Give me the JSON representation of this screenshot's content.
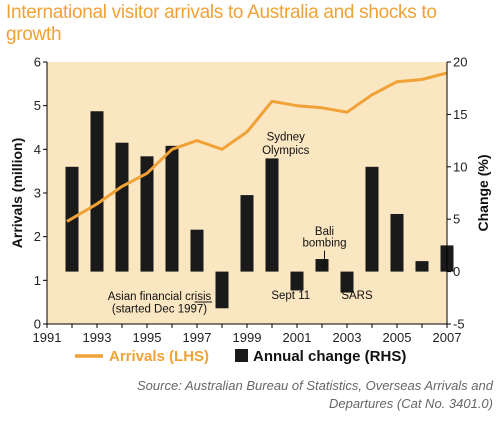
{
  "chart_data": {
    "type": "bar+line",
    "title": "International visitor arrivals to Australia and shocks to growth",
    "ylabel_left": "Arrivals (million)",
    "ylabel_right": "Change (%)",
    "ylim_left": [
      0,
      6
    ],
    "ylim_right": [
      -5,
      20
    ],
    "left_ticks": [
      "0",
      "1",
      "2",
      "3",
      "4",
      "5",
      "6"
    ],
    "right_ticks": [
      "-5",
      "0",
      "5",
      "10",
      "15",
      "20"
    ],
    "x_ticks": [
      "1991",
      "1993",
      "1995",
      "1997",
      "1999",
      "2001",
      "2003",
      "2005",
      "2007"
    ],
    "xlim": [
      1991,
      2007
    ],
    "grid": false,
    "legend_position": "bottom",
    "series": [
      {
        "name": "Arrivals (LHS)",
        "type": "line",
        "axis": "left",
        "color": "#f0a236",
        "x": [
          1991.8,
          1993,
          1994,
          1995,
          1996,
          1997,
          1998,
          1999,
          2000,
          2001,
          2002,
          2003,
          2004,
          2005,
          2006,
          2007
        ],
        "y": [
          2.35,
          2.75,
          3.15,
          3.45,
          4.0,
          4.2,
          4.0,
          4.4,
          5.1,
          5.0,
          4.95,
          4.85,
          5.25,
          5.55,
          5.6,
          5.75
        ]
      },
      {
        "name": "Annual change (RHS)",
        "type": "bar",
        "axis": "right",
        "color": "#1a1a1a",
        "x": [
          1992,
          1993,
          1994,
          1995,
          1996,
          1997,
          1998,
          1999,
          2000,
          2001,
          2002,
          2003,
          2004,
          2005,
          2006,
          2007
        ],
        "y": [
          10.0,
          15.3,
          12.3,
          11.0,
          12.0,
          4.0,
          -3.5,
          7.3,
          10.8,
          -1.8,
          1.2,
          -2.0,
          10.0,
          5.5,
          1.0,
          2.5
        ]
      }
    ],
    "annotations": [
      {
        "text": "Sydney",
        "x": 2000.55,
        "y_right": 12.5
      },
      {
        "text": "Olympics",
        "x": 2000.55,
        "y_right": 11.2
      },
      {
        "text": "Bali",
        "x": 2002.1,
        "y_right": 3.5
      },
      {
        "text": "bombing",
        "x": 2002.1,
        "y_right": 2.4
      },
      {
        "text": "Asian financial crisis",
        "x": 1995.5,
        "y_right": -2.7
      },
      {
        "text": "(started Dec 1997)",
        "x": 1995.5,
        "y_right": -3.9
      },
      {
        "text": "Sept 11",
        "x": 2000.75,
        "y_right": -2.6
      },
      {
        "text": "SARS",
        "x": 2003.4,
        "y_right": -2.6
      }
    ]
  },
  "source_line1": "Source: Australian Bureau of Statistics, Overseas Arrivals and",
  "source_line2": "Departures (Cat No. 3401.0)"
}
